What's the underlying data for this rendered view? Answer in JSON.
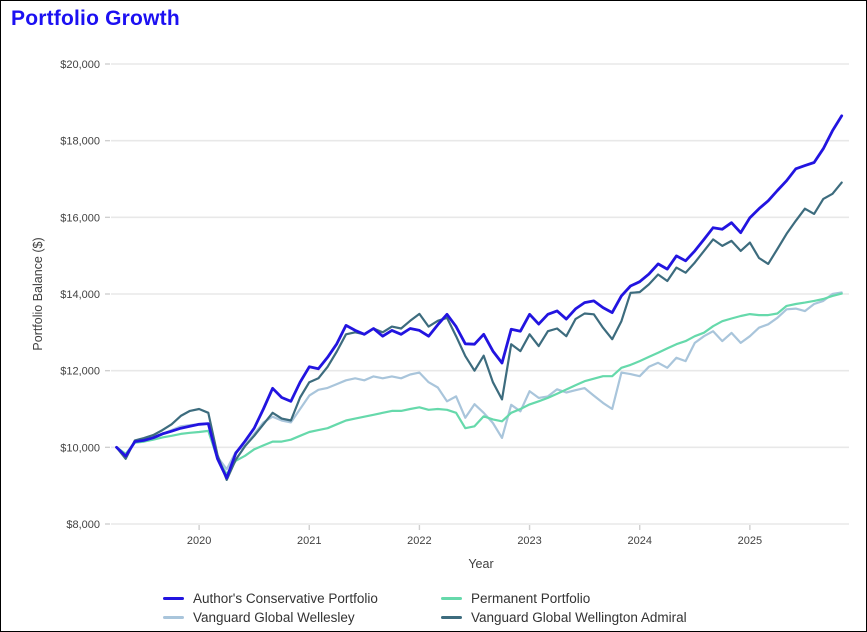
{
  "title": "Portfolio Growth",
  "title_color": "#1c10f2",
  "chart_data": {
    "type": "line",
    "title": "Portfolio Growth",
    "xlabel": "Year",
    "ylabel": "Portfolio Balance ($)",
    "xlim": [
      2019.2,
      2025.9
    ],
    "ylim": [
      8000,
      20000
    ],
    "grid": "horizontal",
    "grid_color": "#e8e8e8",
    "tick_color": "#cfcfcf",
    "tick_label_color": "#424242",
    "legend_position": "bottom",
    "x_start": 2019.25,
    "x_step": 0.0833333,
    "x_unit": "monthly, Apr 2019 - Nov 2025",
    "xticks": [
      {
        "value": 2020,
        "label": "2020"
      },
      {
        "value": 2021,
        "label": "2021"
      },
      {
        "value": 2022,
        "label": "2022"
      },
      {
        "value": 2023,
        "label": "2023"
      },
      {
        "value": 2024,
        "label": "2024"
      },
      {
        "value": 2025,
        "label": "2025"
      }
    ],
    "yticks": [
      {
        "value": 8000,
        "label": "$8,000"
      },
      {
        "value": 10000,
        "label": "$10,000"
      },
      {
        "value": 12000,
        "label": "$12,000"
      },
      {
        "value": 14000,
        "label": "$14,000"
      },
      {
        "value": 16000,
        "label": "$16,000"
      },
      {
        "value": 18000,
        "label": "$18,000"
      },
      {
        "value": 20000,
        "label": "$20,000"
      }
    ],
    "series": [
      {
        "name": "Vanguard Global Wellesley",
        "color": "#a9c5db",
        "values": [
          10000,
          9820,
          10150,
          10200,
          10280,
          10350,
          10450,
          10550,
          10580,
          10600,
          10620,
          9750,
          9430,
          9880,
          10050,
          10350,
          10650,
          10800,
          10700,
          10650,
          11000,
          11350,
          11500,
          11550,
          11650,
          11750,
          11800,
          11750,
          11850,
          11800,
          11850,
          11800,
          11900,
          11950,
          11700,
          11560,
          11200,
          11330,
          10770,
          11125,
          10900,
          10635,
          10245,
          11110,
          10940,
          11465,
          11290,
          11330,
          11515,
          11430,
          11490,
          11545,
          11350,
          11160,
          11000,
          11950,
          11910,
          11855,
          12100,
          12205,
          12075,
          12335,
          12250,
          12725,
          12900,
          13030,
          12770,
          12985,
          12725,
          12900,
          13120,
          13210,
          13380,
          13600,
          13620,
          13555,
          13740,
          13820,
          14000,
          14040
        ]
      },
      {
        "name": "Permanent Portfolio",
        "color": "#66d9ab",
        "values": [
          10000,
          9830,
          10120,
          10150,
          10200,
          10260,
          10300,
          10350,
          10380,
          10400,
          10430,
          9700,
          9300,
          9650,
          9780,
          9950,
          10050,
          10150,
          10150,
          10200,
          10300,
          10400,
          10450,
          10500,
          10600,
          10700,
          10750,
          10800,
          10850,
          10900,
          10950,
          10950,
          11000,
          11045,
          10980,
          11000,
          10980,
          10900,
          10500,
          10550,
          10810,
          10730,
          10680,
          10900,
          11000,
          11120,
          11200,
          11290,
          11400,
          11510,
          11620,
          11725,
          11790,
          11855,
          11855,
          12075,
          12150,
          12250,
          12360,
          12465,
          12580,
          12690,
          12770,
          12900,
          12990,
          13160,
          13290,
          13360,
          13425,
          13475,
          13450,
          13450,
          13490,
          13690,
          13740,
          13775,
          13820,
          13870,
          13950,
          14010
        ]
      },
      {
        "name": "Vanguard Global Wellington Admiral",
        "color": "#3d6c7e",
        "values": [
          10000,
          9700,
          10180,
          10240,
          10320,
          10450,
          10600,
          10820,
          10950,
          11000,
          10900,
          9800,
          9150,
          9680,
          10030,
          10300,
          10600,
          10900,
          10750,
          10700,
          11300,
          11700,
          11800,
          12100,
          12500,
          12950,
          13000,
          12950,
          13100,
          13000,
          13150,
          13100,
          13300,
          13480,
          13150,
          13300,
          13380,
          12900,
          12380,
          12000,
          12390,
          11700,
          11250,
          12690,
          12510,
          12950,
          12640,
          13030,
          13100,
          12900,
          13345,
          13490,
          13470,
          13120,
          12820,
          13290,
          14030,
          14050,
          14250,
          14510,
          14340,
          14690,
          14555,
          14820,
          15125,
          15425,
          15255,
          15385,
          15125,
          15340,
          14940,
          14785,
          15175,
          15570,
          15910,
          16225,
          16090,
          16480,
          16615,
          16905
        ]
      },
      {
        "name": "Author's Conservative Portfolio",
        "color": "#2214e0",
        "values": [
          10000,
          9770,
          10150,
          10180,
          10250,
          10350,
          10420,
          10500,
          10550,
          10600,
          10620,
          9700,
          9200,
          9850,
          10160,
          10500,
          11000,
          11540,
          11300,
          11200,
          11700,
          12100,
          12050,
          12350,
          12700,
          13180,
          13050,
          12950,
          13100,
          12900,
          13050,
          12950,
          13100,
          13050,
          12900,
          13200,
          13470,
          13150,
          12700,
          12690,
          12950,
          12510,
          12200,
          13080,
          13030,
          13470,
          13215,
          13470,
          13560,
          13345,
          13610,
          13775,
          13820,
          13645,
          13515,
          13950,
          14210,
          14320,
          14520,
          14785,
          14650,
          14995,
          14865,
          15125,
          15425,
          15730,
          15690,
          15860,
          15600,
          15990,
          16225,
          16430,
          16700,
          16955,
          17265,
          17350,
          17430,
          17790,
          18260,
          18650
        ]
      }
    ]
  }
}
